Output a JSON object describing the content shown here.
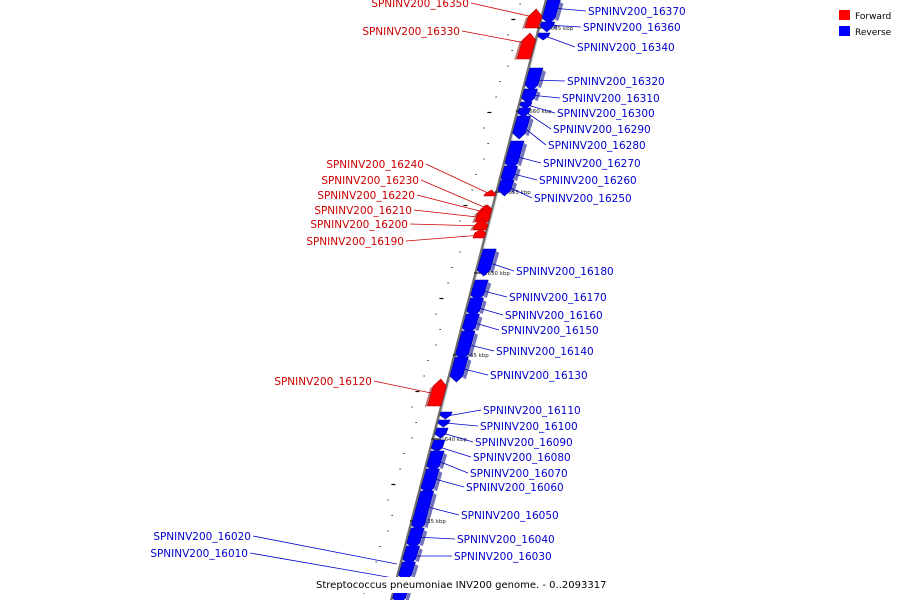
{
  "caption": "Streptococcus pneumoniae INV200 genome. - 0..2093317",
  "legend": [
    {
      "label": "Forward",
      "color": "#ff0000"
    },
    {
      "label": "Reverse",
      "color": "#0000ff"
    }
  ],
  "colors": {
    "forward": "#ff0000",
    "reverse": "#0000ff",
    "forward_label": "#cc0000",
    "reverse_label": "#0000cc",
    "axis": "#808080"
  },
  "ticks": [
    "1665 kbp",
    "1660 kbp",
    "1655 kbp",
    "1650 kbp",
    "1645 kbp",
    "1640 kbp",
    "1635 kbp"
  ],
  "genes": [
    {
      "name": "SPNINV200_16370",
      "strand": "reverse"
    },
    {
      "name": "SPNINV200_16360",
      "strand": "reverse"
    },
    {
      "name": "SPNINV200_16350",
      "strand": "forward"
    },
    {
      "name": "SPNINV200_16340",
      "strand": "reverse"
    },
    {
      "name": "SPNINV200_16330",
      "strand": "forward"
    },
    {
      "name": "SPNINV200_16320",
      "strand": "reverse"
    },
    {
      "name": "SPNINV200_16310",
      "strand": "reverse"
    },
    {
      "name": "SPNINV200_16300",
      "strand": "reverse"
    },
    {
      "name": "SPNINV200_16290",
      "strand": "reverse"
    },
    {
      "name": "SPNINV200_16280",
      "strand": "reverse"
    },
    {
      "name": "SPNINV200_16270",
      "strand": "reverse"
    },
    {
      "name": "SPNINV200_16260",
      "strand": "reverse"
    },
    {
      "name": "SPNINV200_16250",
      "strand": "reverse"
    },
    {
      "name": "SPNINV200_16240",
      "strand": "forward"
    },
    {
      "name": "SPNINV200_16230",
      "strand": "forward"
    },
    {
      "name": "SPNINV200_16220",
      "strand": "forward"
    },
    {
      "name": "SPNINV200_16210",
      "strand": "forward"
    },
    {
      "name": "SPNINV200_16200",
      "strand": "forward"
    },
    {
      "name": "SPNINV200_16190",
      "strand": "forward"
    },
    {
      "name": "SPNINV200_16180",
      "strand": "reverse"
    },
    {
      "name": "SPNINV200_16170",
      "strand": "reverse"
    },
    {
      "name": "SPNINV200_16160",
      "strand": "reverse"
    },
    {
      "name": "SPNINV200_16150",
      "strand": "reverse"
    },
    {
      "name": "SPNINV200_16140",
      "strand": "reverse"
    },
    {
      "name": "SPNINV200_16130",
      "strand": "reverse"
    },
    {
      "name": "SPNINV200_16120",
      "strand": "forward"
    },
    {
      "name": "SPNINV200_16110",
      "strand": "reverse"
    },
    {
      "name": "SPNINV200_16100",
      "strand": "reverse"
    },
    {
      "name": "SPNINV200_16090",
      "strand": "reverse"
    },
    {
      "name": "SPNINV200_16080",
      "strand": "reverse"
    },
    {
      "name": "SPNINV200_16070",
      "strand": "reverse"
    },
    {
      "name": "SPNINV200_16060",
      "strand": "reverse"
    },
    {
      "name": "SPNINV200_16050",
      "strand": "reverse"
    },
    {
      "name": "SPNINV200_16040",
      "strand": "reverse"
    },
    {
      "name": "SPNINV200_16030",
      "strand": "reverse"
    },
    {
      "name": "SPNINV200_16020",
      "strand": "reverse"
    },
    {
      "name": "SPNINV200_16010",
      "strand": "reverse"
    }
  ]
}
